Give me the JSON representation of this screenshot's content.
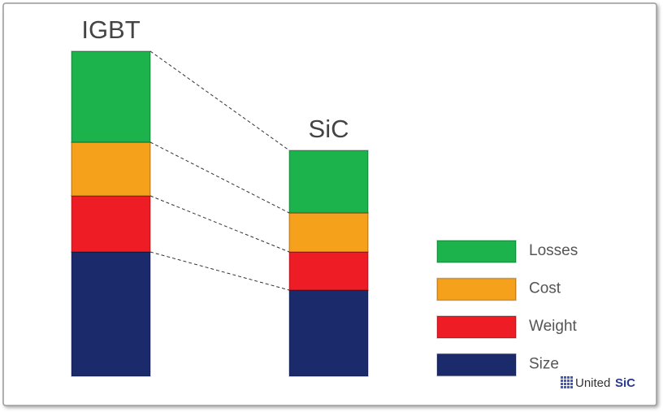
{
  "chart_data": {
    "type": "stacked-bar",
    "categories": [
      "IGBT",
      "SiC"
    ],
    "series": [
      {
        "name": "Size",
        "color": "#1b2a6b",
        "values": [
          153,
          106
        ]
      },
      {
        "name": "Weight",
        "color": "#ee1d25",
        "values": [
          69,
          47
        ]
      },
      {
        "name": "Cost",
        "color": "#f6a11c",
        "values": [
          66,
          48
        ]
      },
      {
        "name": "Losses",
        "color": "#1db34c",
        "values": [
          112,
          77
        ]
      }
    ],
    "logo": {
      "text": "United",
      "bold": "SiC"
    }
  }
}
